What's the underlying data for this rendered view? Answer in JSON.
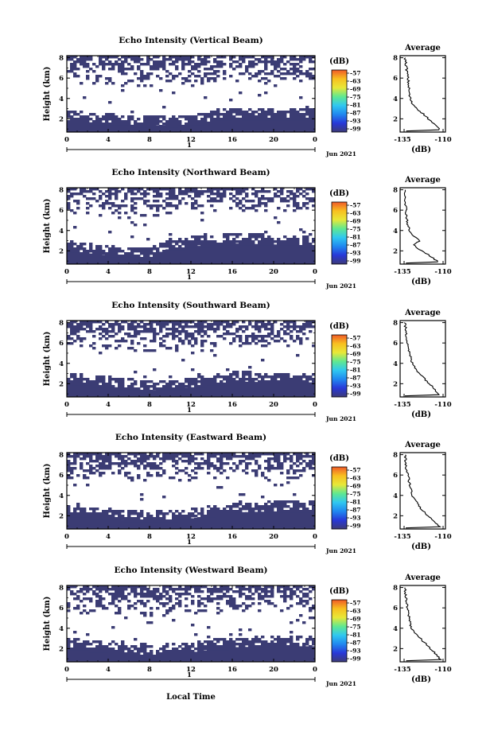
{
  "common": {
    "x_ticks": [
      "0",
      "4",
      "8",
      "12",
      "16",
      "20",
      "0"
    ],
    "y_ticks": [
      "8",
      "6",
      "4",
      "2"
    ],
    "ylabel": "Height (km)",
    "date_day": "1",
    "date_label": "Jun 2021",
    "colorbar_unit": "(dB)",
    "colorbar_ticks": [
      "-57",
      "-63",
      "-69",
      "-75",
      "-81",
      "-87",
      "-93",
      "-99"
    ],
    "colorbar_colors": [
      "#f05a28",
      "#f8c020",
      "#e8e838",
      "#60e890",
      "#30c8f0",
      "#2088f0",
      "#2838d8",
      "#3c3a78"
    ],
    "echo_color": "#3b3c74",
    "avg_title": "Average",
    "avg_xticks": [
      "-135",
      "-110"
    ],
    "avg_xlabel": "(dB)",
    "avg_yticks": [
      "8",
      "6",
      "4",
      "2"
    ]
  },
  "xlabel_bottom": "Local Time",
  "chart_data": [
    {
      "type": "heatmap",
      "title": "Echo Intensity (Vertical Beam)",
      "x_range_hours": [
        0,
        24
      ],
      "y_range_km": [
        0.7,
        8.2
      ],
      "cbar_range_db": [
        -99,
        -57
      ],
      "boundary_layer_top_km": [
        [
          0,
          2.3
        ],
        [
          4,
          2.0
        ],
        [
          8,
          1.8
        ],
        [
          12,
          1.9
        ],
        [
          16,
          2.6
        ],
        [
          20,
          2.5
        ],
        [
          24,
          2.6
        ]
      ],
      "average_profile": {
        "x_db_range": [
          -140,
          -108
        ],
        "y_km_range": [
          0.7,
          8.2
        ],
        "points": [
          [
            -136.5,
            8.0
          ],
          [
            -135.5,
            7.0
          ],
          [
            -134.5,
            6.0
          ],
          [
            -134,
            5.3
          ],
          [
            -133.5,
            4.3
          ],
          [
            -132,
            3.6
          ],
          [
            -128,
            3.0
          ],
          [
            -123,
            2.4
          ],
          [
            -117,
            1.6
          ],
          [
            -111,
            0.8
          ]
        ]
      }
    },
    {
      "type": "heatmap",
      "title": "Echo Intensity (Northward Beam)",
      "x_range_hours": [
        0,
        24
      ],
      "y_range_km": [
        0.7,
        8.2
      ],
      "cbar_range_db": [
        -99,
        -57
      ],
      "boundary_layer_top_km": [
        [
          0,
          2.5
        ],
        [
          4,
          2.0
        ],
        [
          8,
          1.8
        ],
        [
          9.5,
          2.6
        ],
        [
          12,
          2.9
        ],
        [
          16,
          3.2
        ],
        [
          20,
          3.1
        ],
        [
          24,
          3.0
        ]
      ],
      "average_profile": {
        "x_db_range": [
          -140,
          -108
        ],
        "y_km_range": [
          0.7,
          8.2
        ],
        "points": [
          [
            -136.5,
            8.0
          ],
          [
            -136,
            6.5
          ],
          [
            -135.5,
            5.5
          ],
          [
            -134.5,
            4.5
          ],
          [
            -133,
            3.8
          ],
          [
            -129,
            3.3
          ],
          [
            -126,
            3.0
          ],
          [
            -131,
            2.6
          ],
          [
            -121,
            1.7
          ],
          [
            -112,
            0.8
          ]
        ]
      }
    },
    {
      "type": "heatmap",
      "title": "Echo Intensity (Southward Beam)",
      "x_range_hours": [
        0,
        24
      ],
      "y_range_km": [
        0.7,
        8.2
      ],
      "cbar_range_db": [
        -99,
        -57
      ],
      "boundary_layer_top_km": [
        [
          0,
          2.6
        ],
        [
          4,
          2.2
        ],
        [
          8,
          1.8
        ],
        [
          12,
          2.1
        ],
        [
          16,
          2.7
        ],
        [
          20,
          2.6
        ],
        [
          24,
          2.6
        ]
      ],
      "average_profile": {
        "x_db_range": [
          -140,
          -108
        ],
        "y_km_range": [
          0.7,
          8.2
        ],
        "points": [
          [
            -136.5,
            8.0
          ],
          [
            -136,
            7.0
          ],
          [
            -134.5,
            6.0
          ],
          [
            -133.5,
            5.0
          ],
          [
            -131.5,
            4.0
          ],
          [
            -128,
            3.3
          ],
          [
            -124,
            2.7
          ],
          [
            -118,
            1.8
          ],
          [
            -111,
            0.8
          ]
        ]
      }
    },
    {
      "type": "heatmap",
      "title": "Echo Intensity (Eastward Beam)",
      "x_range_hours": [
        0,
        24
      ],
      "y_range_km": [
        0.7,
        8.2
      ],
      "cbar_range_db": [
        -99,
        -57
      ],
      "boundary_layer_top_km": [
        [
          0,
          2.6
        ],
        [
          4,
          2.2
        ],
        [
          8,
          1.9
        ],
        [
          12,
          2.2
        ],
        [
          16,
          2.8
        ],
        [
          20,
          2.9
        ],
        [
          24,
          2.9
        ]
      ],
      "average_profile": {
        "x_db_range": [
          -140,
          -108
        ],
        "y_km_range": [
          0.7,
          8.2
        ],
        "points": [
          [
            -136.5,
            8.0
          ],
          [
            -136,
            6.8
          ],
          [
            -134.5,
            6.0
          ],
          [
            -133,
            5.0
          ],
          [
            -131.5,
            4.0
          ],
          [
            -127,
            3.2
          ],
          [
            -125,
            2.6
          ],
          [
            -118,
            1.7
          ],
          [
            -111,
            0.8
          ]
        ]
      }
    },
    {
      "type": "heatmap",
      "title": "Echo Intensity (Westward Beam)",
      "x_range_hours": [
        0,
        24
      ],
      "y_range_km": [
        0.7,
        8.2
      ],
      "cbar_range_db": [
        -99,
        -57
      ],
      "boundary_layer_top_km": [
        [
          0,
          2.6
        ],
        [
          4,
          2.1
        ],
        [
          8,
          1.8
        ],
        [
          12,
          2.1
        ],
        [
          16,
          2.6
        ],
        [
          20,
          2.7
        ],
        [
          24,
          2.7
        ]
      ],
      "average_profile": {
        "x_db_range": [
          -140,
          -108
        ],
        "y_km_range": [
          0.7,
          8.2
        ],
        "points": [
          [
            -136.5,
            8.0
          ],
          [
            -136,
            7.0
          ],
          [
            -135,
            6.0
          ],
          [
            -133.5,
            5.0
          ],
          [
            -132,
            4.0
          ],
          [
            -128,
            3.3
          ],
          [
            -123,
            2.6
          ],
          [
            -117,
            1.8
          ],
          [
            -111,
            0.8
          ]
        ]
      }
    }
  ]
}
